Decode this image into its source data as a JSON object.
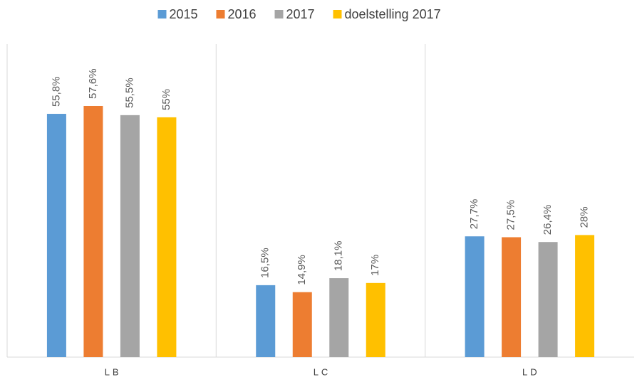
{
  "chart_data": {
    "type": "bar",
    "categories": [
      "LB",
      "LC",
      "LD"
    ],
    "series": [
      {
        "name": "2015",
        "color": "#5b9bd5",
        "values": [
          55.8,
          16.5,
          27.7
        ],
        "value_labels": [
          "55,8%",
          "16,5%",
          "27,7%"
        ]
      },
      {
        "name": "2016",
        "color": "#ed7d31",
        "values": [
          57.6,
          14.9,
          27.5
        ],
        "value_labels": [
          "57,6%",
          "14,9%",
          "27,5%"
        ]
      },
      {
        "name": "2017",
        "color": "#a5a5a5",
        "values": [
          55.5,
          18.1,
          26.4
        ],
        "value_labels": [
          "55,5%",
          "18,1%",
          "26,4%"
        ]
      },
      {
        "name": "doelstelling 2017",
        "color": "#ffc000",
        "values": [
          55,
          17,
          28
        ],
        "value_labels": [
          "55%",
          "17%",
          "28%"
        ]
      }
    ],
    "ylim": [
      0,
      70
    ],
    "legend": "top"
  }
}
